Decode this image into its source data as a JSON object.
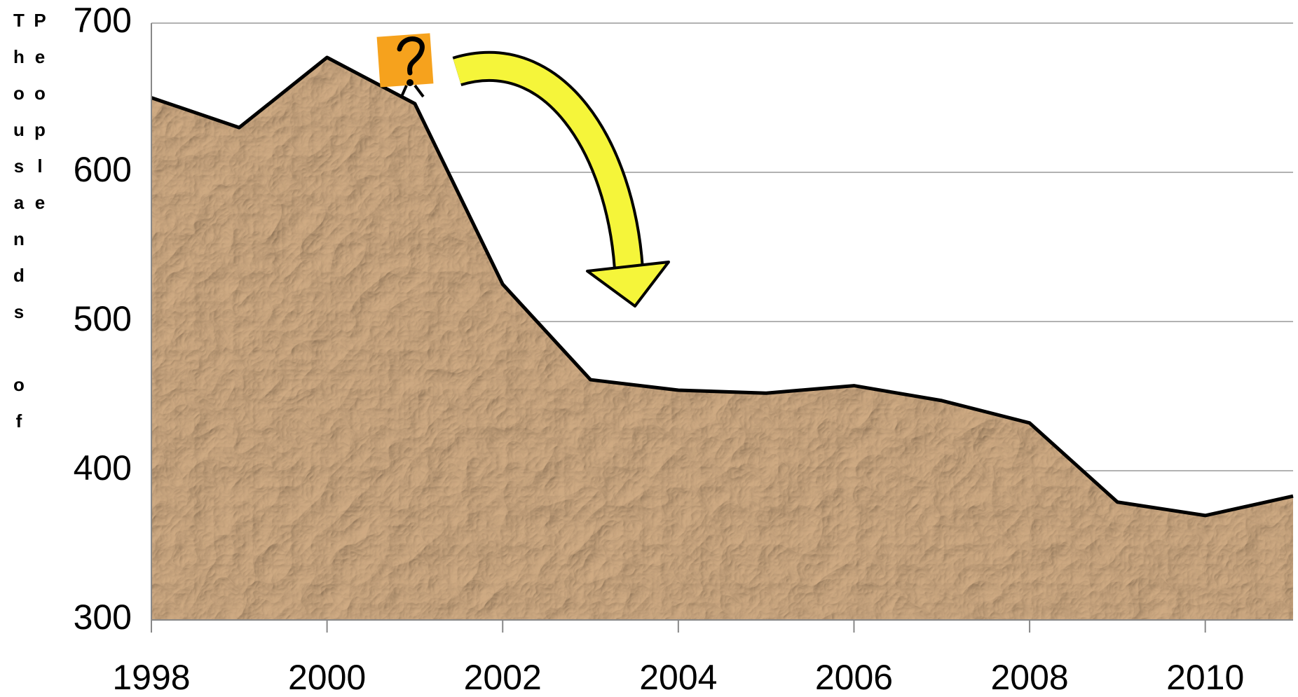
{
  "chart_data": {
    "type": "area",
    "y_label": "Thousands of People",
    "x": [
      1998,
      1999,
      2000,
      2001,
      2002,
      2003,
      2004,
      2005,
      2006,
      2007,
      2008,
      2009,
      2010,
      2011
    ],
    "values": [
      650,
      630,
      677,
      646,
      525,
      461,
      454,
      452,
      457,
      447,
      432,
      379,
      370,
      383
    ],
    "color": "#a9825a",
    "xlim": [
      1998,
      2011
    ],
    "xticks": [
      1998,
      2000,
      2002,
      2004,
      2006,
      2008,
      2010
    ],
    "ylim": [
      300,
      700
    ],
    "yticks": [
      300,
      400,
      500,
      600,
      700
    ],
    "grid": true
  }
}
